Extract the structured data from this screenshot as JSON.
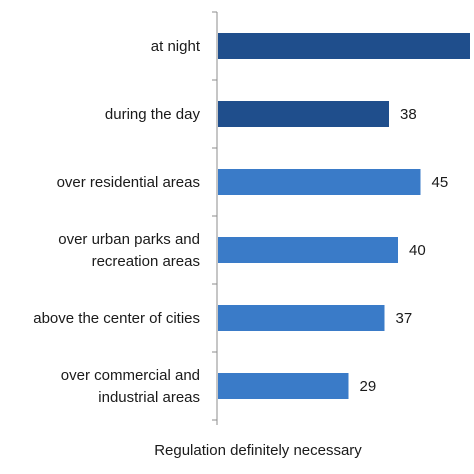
{
  "chart_data": {
    "type": "bar",
    "orientation": "horizontal",
    "categories": [
      [
        "at night"
      ],
      [
        "during the day"
      ],
      [
        "over residential areas"
      ],
      [
        "over urban parks and",
        "recreation areas"
      ],
      [
        "above the center of cities"
      ],
      [
        "over commercial and",
        "industrial areas"
      ]
    ],
    "values": [
      56,
      38,
      45,
      40,
      37,
      29
    ],
    "value_labels": [
      "",
      "38",
      "45",
      "40",
      "37",
      "29"
    ],
    "colors": [
      "#1f4e8c",
      "#1f4e8c",
      "#3a7bc8",
      "#3a7bc8",
      "#3a7bc8",
      "#3a7bc8"
    ],
    "xlabel": "Regulation  definitely necessary",
    "xlim": [
      0,
      56
    ]
  }
}
